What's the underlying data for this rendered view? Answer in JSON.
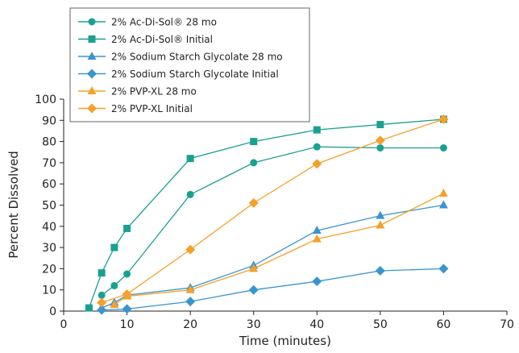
{
  "chart_data": {
    "type": "line",
    "xlabel": "Time (minutes)",
    "ylabel": "Percent Dissolved",
    "xlim": [
      0,
      70
    ],
    "ylim": [
      0,
      100
    ],
    "xticks": [
      0,
      10,
      20,
      30,
      40,
      50,
      60,
      70
    ],
    "yticks": [
      0,
      10,
      20,
      30,
      40,
      50,
      60,
      70,
      80,
      90,
      100
    ],
    "grid": false,
    "legend_position": "top-left",
    "series": [
      {
        "name": "2% Ac-Di-Sol® 28 mo",
        "color": "#1aa091",
        "marker": "circle",
        "points": [
          [
            6,
            7.5
          ],
          [
            8,
            12
          ],
          [
            10,
            17.5
          ],
          [
            20,
            55
          ],
          [
            30,
            70
          ],
          [
            40,
            77.5
          ],
          [
            50,
            77
          ],
          [
            60,
            77
          ]
        ]
      },
      {
        "name": "2% Ac-Di-Sol® Initial",
        "color": "#1aa091",
        "marker": "square",
        "points": [
          [
            4,
            1.5
          ],
          [
            6,
            18
          ],
          [
            8,
            30
          ],
          [
            10,
            39
          ],
          [
            20,
            72
          ],
          [
            30,
            80
          ],
          [
            40,
            85.5
          ],
          [
            50,
            88
          ],
          [
            60,
            90.5
          ]
        ]
      },
      {
        "name": "2% Sodium Starch Glycolate 28 mo",
        "color": "#3a95cf",
        "marker": "triangle",
        "points": [
          [
            6,
            1.5
          ],
          [
            8,
            4
          ],
          [
            10,
            7.5
          ],
          [
            20,
            11
          ],
          [
            30,
            21.5
          ],
          [
            40,
            38
          ],
          [
            50,
            45
          ],
          [
            60,
            50
          ]
        ]
      },
      {
        "name": "2% Sodium Starch Glycolate Initial",
        "color": "#3a95cf",
        "marker": "diamond",
        "points": [
          [
            6,
            0.5
          ],
          [
            10,
            1
          ],
          [
            20,
            4.5
          ],
          [
            30,
            10
          ],
          [
            40,
            14
          ],
          [
            50,
            19
          ],
          [
            60,
            20
          ]
        ]
      },
      {
        "name": "2% PVP-XL 28 mo",
        "color": "#f4a02a",
        "marker": "triangle",
        "points": [
          [
            8,
            3
          ],
          [
            10,
            7
          ],
          [
            20,
            10
          ],
          [
            30,
            20
          ],
          [
            40,
            34
          ],
          [
            50,
            40.5
          ],
          [
            60,
            55.5
          ]
        ]
      },
      {
        "name": "2% PVP-XL Initial",
        "color": "#f4a02a",
        "marker": "diamond",
        "points": [
          [
            6,
            4
          ],
          [
            10,
            8
          ],
          [
            20,
            29
          ],
          [
            30,
            51
          ],
          [
            40,
            69.5
          ],
          [
            50,
            80.5
          ],
          [
            60,
            90.5
          ]
        ]
      }
    ]
  }
}
